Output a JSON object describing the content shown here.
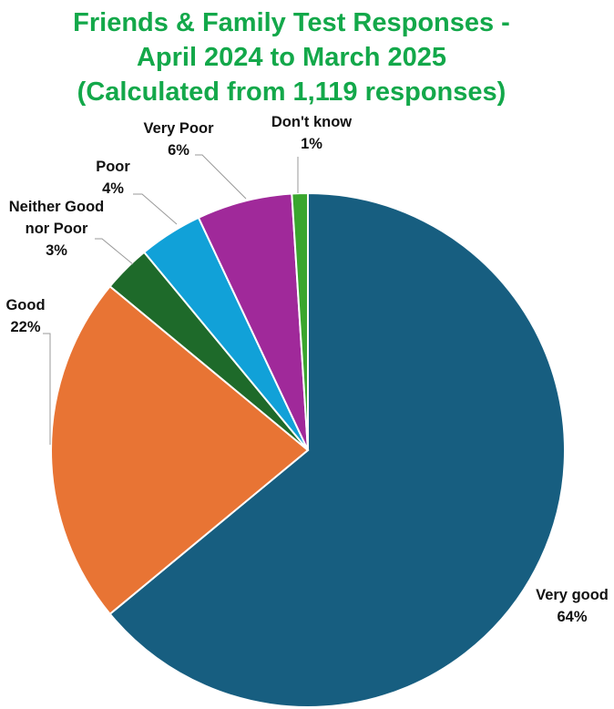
{
  "chart_data": {
    "type": "pie",
    "title_lines": [
      "Friends & Family Test Responses -",
      "April 2024 to March 2025",
      "(Calculated from 1,119 responses)"
    ],
    "start_from": "top, clockwise",
    "slices": [
      {
        "label": "Very good",
        "label_lines": [
          "Very good"
        ],
        "value": 64,
        "value_label": "64%",
        "color": "#175e80"
      },
      {
        "label": "Good",
        "label_lines": [
          "Good"
        ],
        "value": 22,
        "value_label": "22%",
        "color": "#e87434"
      },
      {
        "label": "Neither Good nor Poor",
        "label_lines": [
          "Neither Good",
          "nor Poor"
        ],
        "value": 3,
        "value_label": "3%",
        "color": "#1e6a2a"
      },
      {
        "label": "Poor",
        "label_lines": [
          "Poor"
        ],
        "value": 4,
        "value_label": "4%",
        "color": "#11a1d8"
      },
      {
        "label": "Very Poor",
        "label_lines": [
          "Very Poor"
        ],
        "value": 6,
        "value_label": "6%",
        "color": "#a0299a"
      },
      {
        "label": "Don't know",
        "label_lines": [
          "Don't know"
        ],
        "value": 1,
        "value_label": "1%",
        "color": "#3aa62e"
      }
    ],
    "legend": "none"
  }
}
